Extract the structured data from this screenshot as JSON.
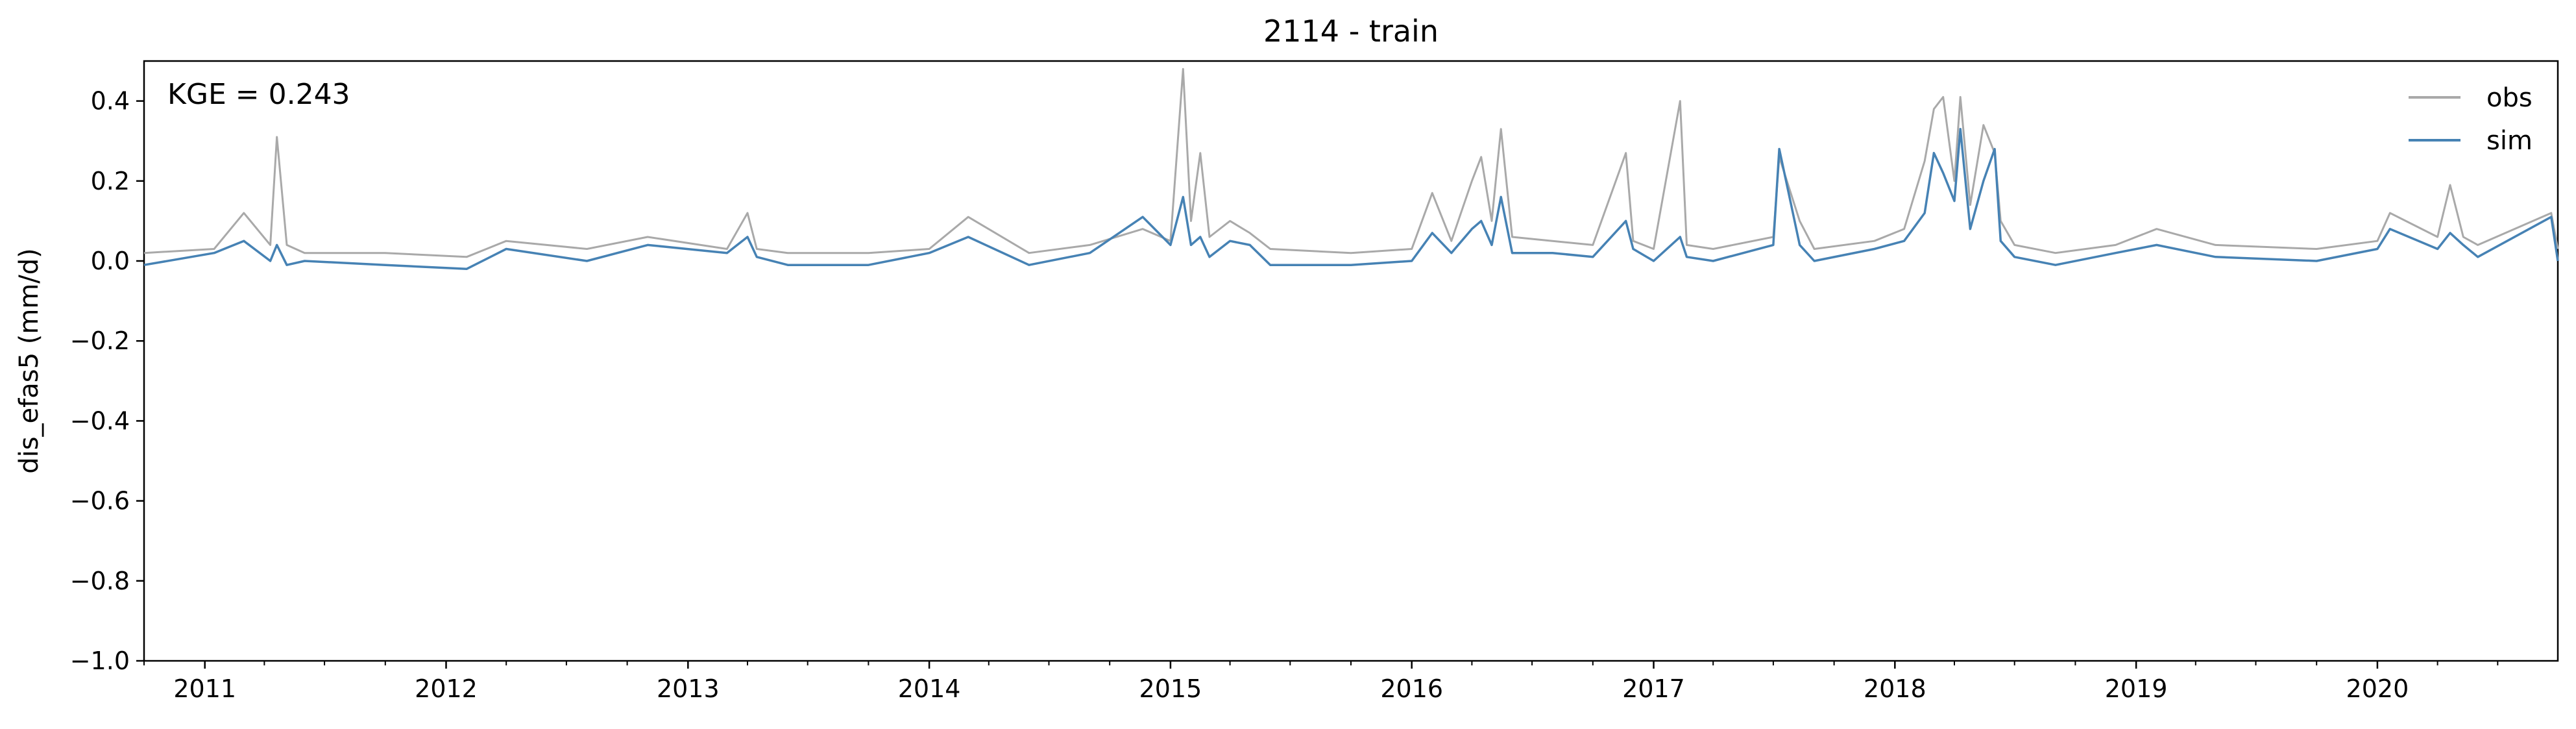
{
  "chart_data": {
    "type": "line",
    "title": "2114 - train",
    "xlabel": "",
    "ylabel": "dis_efas5 (mm/d)",
    "annotation": "KGE = 0.243",
    "ylim": [
      -1.0,
      0.5
    ],
    "yticks": [
      -1.0,
      -0.8,
      -0.6,
      -0.4,
      -0.2,
      0.0,
      0.2,
      0.4
    ],
    "ytick_labels": [
      "−1.0",
      "−0.8",
      "−0.6",
      "−0.4",
      "−0.2",
      "0.0",
      "0.2",
      "0.4"
    ],
    "xlim": [
      "2010-10-01",
      "2020-09-30"
    ],
    "xticks": [
      "2011-01-01",
      "2012-01-01",
      "2013-01-01",
      "2014-01-01",
      "2015-01-01",
      "2016-01-01",
      "2017-01-01",
      "2018-01-01",
      "2019-01-01",
      "2020-01-01"
    ],
    "xtick_labels": [
      "2011",
      "2012",
      "2013",
      "2014",
      "2015",
      "2016",
      "2017",
      "2018",
      "2019",
      "2020"
    ],
    "grid": false,
    "legend_position": "top-right",
    "series": [
      {
        "name": "obs",
        "color": "#a9a9a9",
        "x": [
          "2010-10-01",
          "2011-01-15",
          "2011-03-01",
          "2011-04-10",
          "2011-04-20",
          "2011-05-05",
          "2011-06-01",
          "2011-10-01",
          "2012-02-01",
          "2012-04-01",
          "2012-08-01",
          "2012-11-01",
          "2013-03-01",
          "2013-04-01",
          "2013-04-15",
          "2013-06-01",
          "2013-10-01",
          "2014-01-01",
          "2014-03-01",
          "2014-06-01",
          "2014-09-01",
          "2014-11-20",
          "2015-01-01",
          "2015-01-20",
          "2015-02-01",
          "2015-02-15",
          "2015-03-01",
          "2015-04-01",
          "2015-05-01",
          "2015-06-01",
          "2015-10-01",
          "2016-01-01",
          "2016-02-01",
          "2016-03-01",
          "2016-04-01",
          "2016-04-15",
          "2016-05-01",
          "2016-05-15",
          "2016-06-01",
          "2016-08-01",
          "2016-10-01",
          "2016-11-20",
          "2016-12-01",
          "2017-01-01",
          "2017-02-10",
          "2017-02-20",
          "2017-04-01",
          "2017-07-01",
          "2017-07-10",
          "2017-08-10",
          "2017-09-01",
          "2017-12-01",
          "2018-01-15",
          "2018-02-15",
          "2018-03-01",
          "2018-03-15",
          "2018-04-01",
          "2018-04-10",
          "2018-04-25",
          "2018-05-15",
          "2018-06-01",
          "2018-06-10",
          "2018-07-01",
          "2018-09-01",
          "2018-12-01",
          "2019-02-01",
          "2019-05-01",
          "2019-10-01",
          "2020-01-01",
          "2020-01-20",
          "2020-04-01",
          "2020-04-20",
          "2020-05-10",
          "2020-06-01",
          "2020-09-20",
          "2020-09-30"
        ],
        "values": [
          0.02,
          0.03,
          0.12,
          0.04,
          0.31,
          0.04,
          0.02,
          0.02,
          0.01,
          0.05,
          0.03,
          0.06,
          0.03,
          0.12,
          0.03,
          0.02,
          0.02,
          0.03,
          0.11,
          0.02,
          0.04,
          0.08,
          0.05,
          0.48,
          0.1,
          0.27,
          0.06,
          0.1,
          0.07,
          0.03,
          0.02,
          0.03,
          0.17,
          0.05,
          0.2,
          0.26,
          0.1,
          0.33,
          0.06,
          0.05,
          0.04,
          0.27,
          0.05,
          0.03,
          0.4,
          0.04,
          0.03,
          0.06,
          0.26,
          0.1,
          0.03,
          0.05,
          0.08,
          0.25,
          0.38,
          0.41,
          0.2,
          0.41,
          0.14,
          0.34,
          0.27,
          0.1,
          0.04,
          0.02,
          0.04,
          0.08,
          0.04,
          0.03,
          0.05,
          0.12,
          0.06,
          0.19,
          0.06,
          0.04,
          0.12,
          0.03
        ]
      },
      {
        "name": "sim",
        "color": "#4682b4",
        "x": [
          "2010-10-01",
          "2011-01-15",
          "2011-03-01",
          "2011-04-10",
          "2011-04-20",
          "2011-05-05",
          "2011-06-01",
          "2011-10-01",
          "2012-02-01",
          "2012-04-01",
          "2012-08-01",
          "2012-11-01",
          "2013-03-01",
          "2013-04-01",
          "2013-04-15",
          "2013-06-01",
          "2013-10-01",
          "2014-01-01",
          "2014-03-01",
          "2014-06-01",
          "2014-09-01",
          "2014-11-20",
          "2015-01-01",
          "2015-01-20",
          "2015-02-01",
          "2015-02-15",
          "2015-03-01",
          "2015-04-01",
          "2015-05-01",
          "2015-06-01",
          "2015-10-01",
          "2016-01-01",
          "2016-02-01",
          "2016-03-01",
          "2016-04-01",
          "2016-04-15",
          "2016-05-01",
          "2016-05-15",
          "2016-06-01",
          "2016-08-01",
          "2016-10-01",
          "2016-11-20",
          "2016-12-01",
          "2017-01-01",
          "2017-02-10",
          "2017-02-20",
          "2017-04-01",
          "2017-07-01",
          "2017-07-10",
          "2017-08-10",
          "2017-09-01",
          "2017-12-01",
          "2018-01-15",
          "2018-02-15",
          "2018-03-01",
          "2018-03-15",
          "2018-04-01",
          "2018-04-10",
          "2018-04-25",
          "2018-05-15",
          "2018-06-01",
          "2018-06-10",
          "2018-07-01",
          "2018-09-01",
          "2018-12-01",
          "2019-02-01",
          "2019-05-01",
          "2019-10-01",
          "2020-01-01",
          "2020-01-20",
          "2020-04-01",
          "2020-04-20",
          "2020-05-10",
          "2020-06-01",
          "2020-09-20",
          "2020-09-30"
        ],
        "values": [
          -0.01,
          0.02,
          0.05,
          0.0,
          0.04,
          -0.01,
          0.0,
          -0.01,
          -0.02,
          0.03,
          0.0,
          0.04,
          0.02,
          0.06,
          0.01,
          -0.01,
          -0.01,
          0.02,
          0.06,
          -0.01,
          0.02,
          0.11,
          0.04,
          0.16,
          0.04,
          0.06,
          0.01,
          0.05,
          0.04,
          -0.01,
          -0.01,
          0.0,
          0.07,
          0.02,
          0.08,
          0.1,
          0.04,
          0.16,
          0.02,
          0.02,
          0.01,
          0.1,
          0.03,
          0.0,
          0.06,
          0.01,
          0.0,
          0.04,
          0.28,
          0.04,
          0.0,
          0.03,
          0.05,
          0.12,
          0.27,
          0.22,
          0.15,
          0.33,
          0.08,
          0.2,
          0.28,
          0.05,
          0.01,
          -0.01,
          0.02,
          0.04,
          0.01,
          0.0,
          0.03,
          0.08,
          0.03,
          0.07,
          0.04,
          0.01,
          0.11,
          0.0
        ]
      }
    ]
  }
}
